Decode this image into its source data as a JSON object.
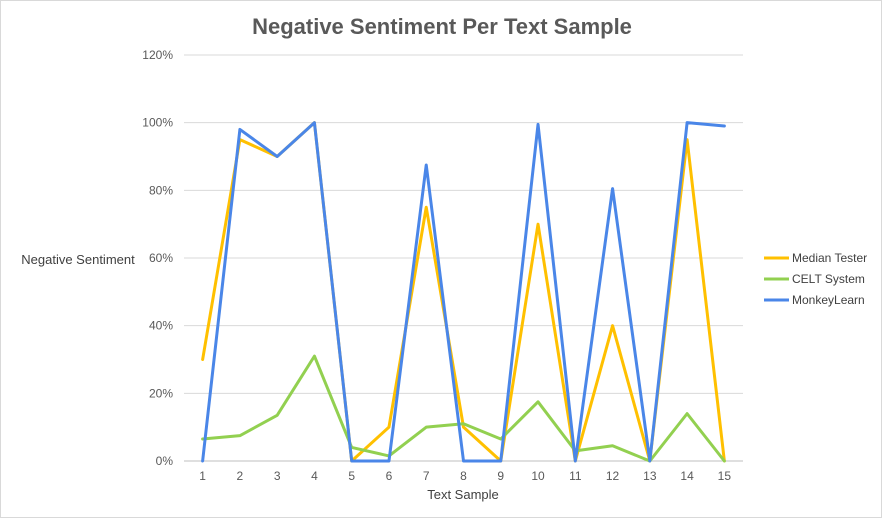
{
  "chart_data": {
    "type": "line",
    "title": "Negative Sentiment Per Text Sample",
    "xlabel": "Text Sample",
    "ylabel": "Negative Sentiment",
    "x": [
      "1",
      "2",
      "3",
      "4",
      "5",
      "6",
      "7",
      "8",
      "9",
      "10",
      "11",
      "12",
      "13",
      "14",
      "15"
    ],
    "ylim": [
      0,
      120
    ],
    "yticks": [
      "0%",
      "20%",
      "40%",
      "60%",
      "80%",
      "100%",
      "120%"
    ],
    "ytick_values": [
      0,
      20,
      40,
      60,
      80,
      100,
      120
    ],
    "grid": true,
    "legend_position": "right",
    "series": [
      {
        "name": "Median Tester",
        "color": "#FFC000",
        "values": [
          30,
          95,
          90,
          100,
          0,
          10,
          75,
          10,
          0,
          70,
          0,
          40,
          0,
          95,
          0
        ]
      },
      {
        "name": "CELT System",
        "color": "#92D050",
        "values": [
          6.5,
          7.5,
          13.5,
          31,
          4,
          1.5,
          10,
          11,
          6.5,
          17.5,
          3,
          4.5,
          0,
          14,
          0
        ]
      },
      {
        "name": "MonkeyLearn",
        "color": "#4A86E8",
        "values": [
          0,
          98,
          90,
          100,
          0,
          0,
          87.5,
          0,
          0,
          99.5,
          0,
          80.5,
          0,
          100,
          99
        ]
      }
    ]
  }
}
